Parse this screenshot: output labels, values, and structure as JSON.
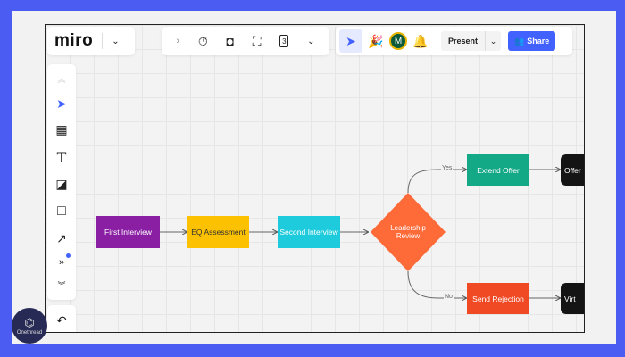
{
  "app": {
    "logo": "miro"
  },
  "toolbar": {
    "present_label": "Present",
    "share_label": "Share",
    "avatar_initial": "M",
    "frames_count": "3"
  },
  "colors": {
    "accent": "#4262ff",
    "purple": "#8a1fa3",
    "yellow": "#fcc100",
    "cyan": "#1ecbdc",
    "orange": "#ff6a39",
    "teal": "#13a886",
    "red": "#f04a24",
    "black": "#141414",
    "background": "#4a5cf2"
  },
  "flow": {
    "nodes": {
      "first": "First Interview",
      "eq": "EQ Assessment",
      "second": "Second Interview",
      "review": "Leadership Review",
      "extend": "Extend Offer",
      "reject": "Send Rejection",
      "offer": "Offer",
      "virt": "Virt"
    },
    "edges": {
      "yes": "Yes",
      "no": "No"
    }
  },
  "watermark": "Onethread"
}
